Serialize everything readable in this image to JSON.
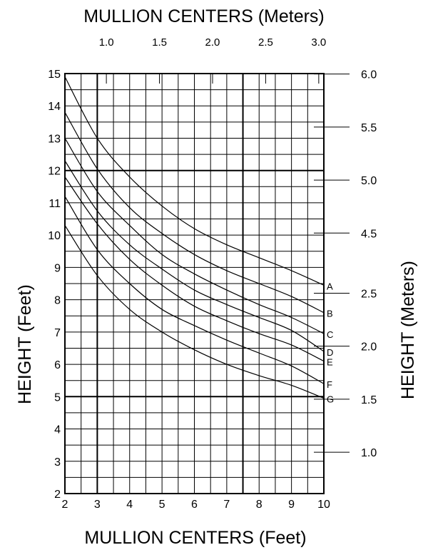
{
  "chart_data": {
    "type": "line",
    "title": "",
    "xlabel": "MULLION CENTERS (Feet)",
    "ylabel": "HEIGHT (Feet)",
    "x2label": "MULLION CENTERS (Meters)",
    "y2label": "HEIGHT (Meters)",
    "xlim": [
      2,
      10
    ],
    "ylim": [
      2,
      15
    ],
    "grid": true,
    "x_ticks": [
      "2",
      "3",
      "4",
      "5",
      "6",
      "7",
      "8",
      "9",
      "10"
    ],
    "y_ticks": [
      "2",
      "3",
      "4",
      "5",
      "6",
      "7",
      "8",
      "9",
      "10",
      "11",
      "12",
      "13",
      "14",
      "15"
    ],
    "x2_ticks": [
      {
        "label": "1.0",
        "value": 1.0
      },
      {
        "label": "1.5",
        "value": 1.5
      },
      {
        "label": "2.0",
        "value": 2.0
      },
      {
        "label": "2.5",
        "value": 2.5
      },
      {
        "label": "3.0",
        "value": 3.0
      }
    ],
    "y2_ticks": [
      {
        "label": "1.0",
        "value": 1.0
      },
      {
        "label": "1.5",
        "value": 1.5
      },
      {
        "label": "2.0",
        "value": 2.0
      },
      {
        "label": "2.5",
        "value": 2.5
      },
      {
        "label": "4.5",
        "value": 4.5
      },
      {
        "label": "5.0",
        "value": 5.0
      },
      {
        "label": "5.5",
        "value": 5.5
      },
      {
        "label": "6.0",
        "value": 6.0
      }
    ],
    "x": [
      2,
      3,
      4,
      5,
      6,
      7,
      8,
      9,
      10
    ],
    "series": [
      {
        "name": "A",
        "values": [
          14.9,
          13.0,
          11.8,
          10.9,
          10.2,
          9.7,
          9.3,
          8.9,
          8.45
        ]
      },
      {
        "name": "B",
        "values": [
          13.8,
          12.05,
          10.85,
          10.05,
          9.4,
          8.9,
          8.5,
          8.1,
          7.6
        ]
      },
      {
        "name": "C",
        "values": [
          13.0,
          11.35,
          10.3,
          9.4,
          8.8,
          8.3,
          7.85,
          7.45,
          6.95
        ]
      },
      {
        "name": "D",
        "values": [
          12.3,
          10.75,
          9.7,
          8.95,
          8.3,
          7.85,
          7.45,
          7.05,
          6.4
        ]
      },
      {
        "name": "E",
        "values": [
          11.8,
          10.35,
          9.25,
          8.45,
          7.8,
          7.35,
          6.95,
          6.6,
          6.1
        ]
      },
      {
        "name": "F",
        "values": [
          11.2,
          9.55,
          8.5,
          7.7,
          7.2,
          6.75,
          6.35,
          5.95,
          5.4
        ]
      },
      {
        "name": "G",
        "values": [
          10.3,
          8.75,
          7.7,
          7.0,
          6.45,
          6.0,
          5.65,
          5.35,
          4.95
        ]
      }
    ]
  }
}
